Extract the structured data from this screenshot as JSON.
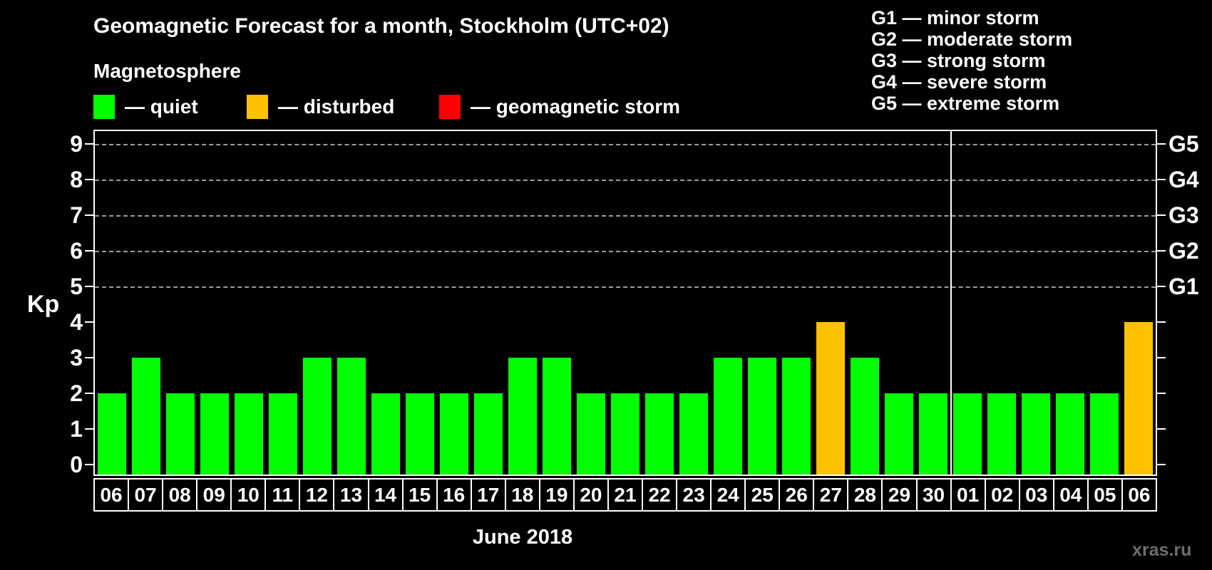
{
  "page": {
    "title": "Geomagnetic Forecast for a month, Stockholm (UTC+02)",
    "subtitle": "Magnetosphere",
    "watermark": "xras.ru"
  },
  "legend": {
    "items": [
      {
        "status": "quiet",
        "label": "— quiet",
        "color": "#00ff00"
      },
      {
        "status": "disturbed",
        "label": "— disturbed",
        "color": "#ffc200"
      },
      {
        "status": "storm",
        "label": "— geomagnetic storm",
        "color": "#ff0000"
      }
    ]
  },
  "g_legend": {
    "items": [
      "G1 — minor storm",
      "G2 — moderate storm",
      "G3 — strong storm",
      "G4 — severe storm",
      "G5 — extreme storm"
    ]
  },
  "axes": {
    "y_label": "Kp",
    "y_ticks": [
      0,
      1,
      2,
      3,
      4,
      5,
      6,
      7,
      8,
      9
    ],
    "g_ticks": [
      {
        "kp": 5,
        "label": "G1"
      },
      {
        "kp": 6,
        "label": "G2"
      },
      {
        "kp": 7,
        "label": "G3"
      },
      {
        "kp": 8,
        "label": "G4"
      },
      {
        "kp": 9,
        "label": "G5"
      }
    ],
    "month_caption": "June 2018"
  },
  "chart_data": {
    "type": "bar",
    "title": "Geomagnetic Forecast for a month, Stockholm (UTC+02)",
    "xlabel": "June 2018",
    "ylabel": "Kp",
    "ylim": [
      0,
      9
    ],
    "grid_levels": [
      5,
      6,
      7,
      8,
      9
    ],
    "legend_position": "top",
    "categories": [
      "06",
      "07",
      "08",
      "09",
      "10",
      "11",
      "12",
      "13",
      "14",
      "15",
      "16",
      "17",
      "18",
      "19",
      "20",
      "21",
      "22",
      "23",
      "24",
      "25",
      "26",
      "27",
      "28",
      "29",
      "30",
      "01",
      "02",
      "03",
      "04",
      "05",
      "06"
    ],
    "values": [
      2,
      3,
      2,
      2,
      2,
      2,
      3,
      3,
      2,
      2,
      2,
      2,
      3,
      3,
      2,
      2,
      2,
      2,
      3,
      3,
      3,
      4,
      3,
      2,
      2,
      2,
      2,
      2,
      2,
      2,
      4
    ],
    "statuses": [
      "quiet",
      "quiet",
      "quiet",
      "quiet",
      "quiet",
      "quiet",
      "quiet",
      "quiet",
      "quiet",
      "quiet",
      "quiet",
      "quiet",
      "quiet",
      "quiet",
      "quiet",
      "quiet",
      "quiet",
      "quiet",
      "quiet",
      "quiet",
      "quiet",
      "disturbed",
      "quiet",
      "quiet",
      "quiet",
      "quiet",
      "quiet",
      "quiet",
      "quiet",
      "quiet",
      "disturbed"
    ],
    "status_colors": {
      "quiet": "#00ff00",
      "disturbed": "#ffc200",
      "storm": "#ff0000"
    },
    "month_separator_index": 25
  }
}
